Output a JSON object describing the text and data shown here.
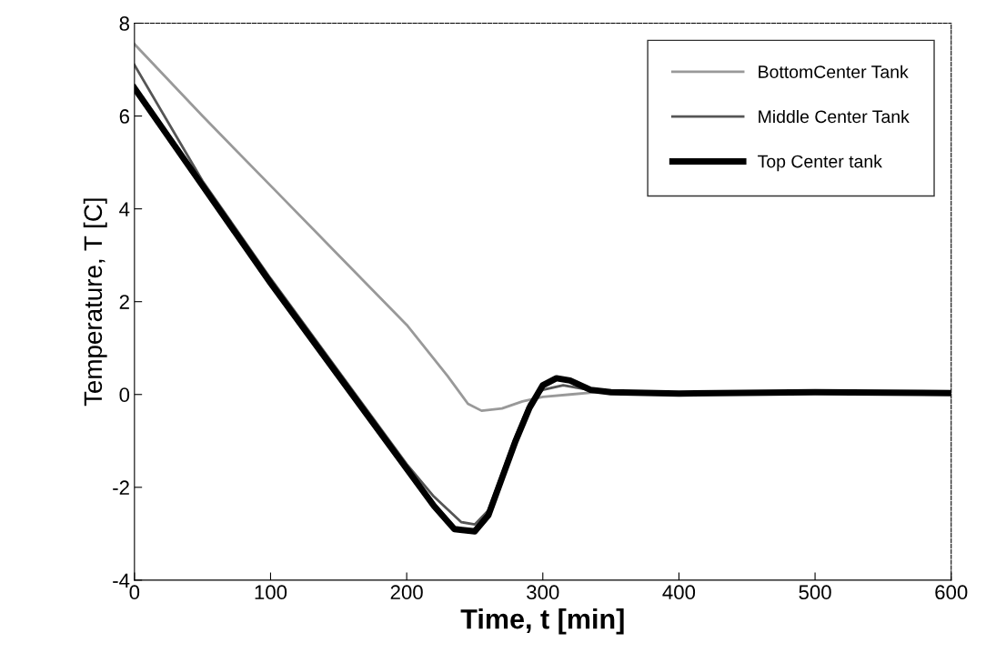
{
  "chart_data": {
    "type": "line",
    "xlabel": "Time, t [min]",
    "ylabel": "Temperature, T [C]",
    "xlim": [
      0,
      600
    ],
    "ylim": [
      -4,
      8
    ],
    "xticks": [
      0,
      100,
      200,
      300,
      400,
      500,
      600
    ],
    "yticks": [
      -4,
      -2,
      0,
      2,
      4,
      6,
      8
    ],
    "grid": false,
    "legend": "top right",
    "series": [
      {
        "name": "BottomCenter Tank",
        "color": "#999999",
        "x": [
          0,
          50,
          100,
          150,
          200,
          230,
          245,
          255,
          270,
          285,
          300,
          320,
          340,
          400,
          500,
          600
        ],
        "values": [
          7.55,
          6.0,
          4.5,
          3.0,
          1.5,
          0.4,
          -0.2,
          -0.35,
          -0.3,
          -0.15,
          -0.05,
          0.0,
          0.05,
          0.02,
          0.05,
          0.02
        ]
      },
      {
        "name": "Middle Center Tank",
        "color": "#555555",
        "x": [
          0,
          50,
          100,
          150,
          200,
          220,
          240,
          250,
          260,
          270,
          280,
          290,
          300,
          315,
          330,
          350,
          400,
          500,
          600
        ],
        "values": [
          7.1,
          4.6,
          2.5,
          0.5,
          -1.5,
          -2.2,
          -2.75,
          -2.8,
          -2.5,
          -1.7,
          -0.9,
          -0.2,
          0.1,
          0.2,
          0.12,
          0.05,
          0.03,
          0.05,
          0.03
        ]
      },
      {
        "name": "Top Center tank",
        "color": "#000000",
        "x": [
          0,
          50,
          100,
          150,
          175,
          200,
          220,
          235,
          250,
          260,
          270,
          280,
          290,
          300,
          310,
          320,
          335,
          350,
          400,
          500,
          600
        ],
        "values": [
          6.6,
          4.5,
          2.4,
          0.4,
          -0.6,
          -1.6,
          -2.4,
          -2.9,
          -2.95,
          -2.6,
          -1.8,
          -1.0,
          -0.3,
          0.2,
          0.35,
          0.3,
          0.1,
          0.05,
          0.02,
          0.05,
          0.03
        ]
      }
    ]
  }
}
